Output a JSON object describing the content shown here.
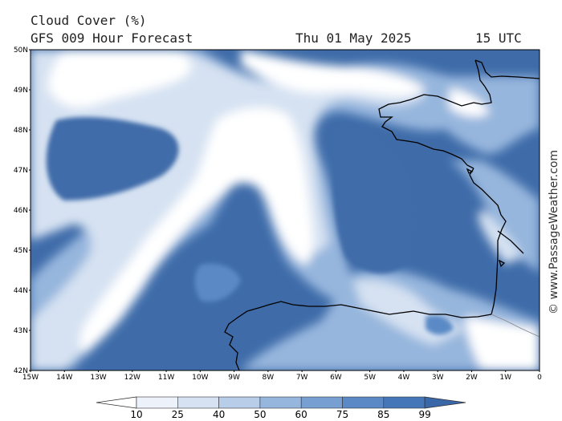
{
  "header": {
    "title": "Cloud Cover (%)",
    "subtitle": "GFS 009 Hour Forecast",
    "date": "Thu 01 May 2025",
    "time": "15 UTC"
  },
  "watermark": "© www.PassageWeather.com",
  "axes": {
    "lat_labels": [
      "50N",
      "49N",
      "48N",
      "47N",
      "46N",
      "45N",
      "44N",
      "43N",
      "42N"
    ],
    "lon_labels": [
      "15W",
      "14W",
      "13W",
      "12W",
      "11W",
      "10W",
      "9W",
      "8W",
      "7W",
      "6W",
      "5W",
      "4W",
      "3W",
      "2W",
      "1W",
      "0"
    ]
  },
  "colorbar": {
    "labels": [
      "10",
      "25",
      "40",
      "50",
      "60",
      "75",
      "85",
      "99"
    ],
    "colors": [
      "#ffffff",
      "#edf2fa",
      "#d6e2f2",
      "#b7cde8",
      "#96b6dd",
      "#779fd2",
      "#5a89c5",
      "#4576b8",
      "#3a67a8"
    ]
  },
  "map_colors": {
    "clear": "#ffffff",
    "light": "#d6e2f2",
    "mid": "#96b6dd",
    "dense": "#5a89c5",
    "overcast": "#3f6ca9",
    "coast": "#000000"
  }
}
